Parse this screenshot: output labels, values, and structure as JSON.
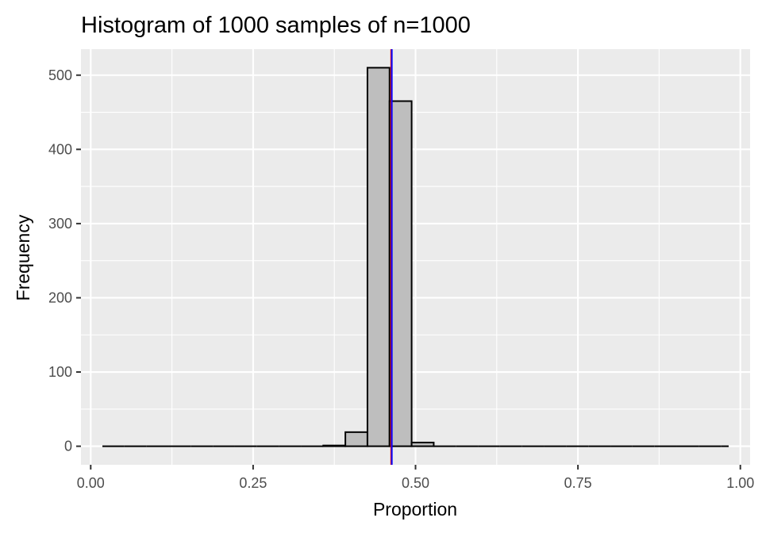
{
  "chart_data": {
    "type": "bar",
    "title": "Histogram of 1000 samples of n=1000",
    "xlabel": "Proportion",
    "ylabel": "Frequency",
    "xlim": [
      -0.015,
      1.015
    ],
    "ylim": [
      -25,
      535
    ],
    "x_ticks": [
      0.0,
      0.25,
      0.5,
      0.75,
      1.0
    ],
    "x_tick_labels": [
      "0.00",
      "0.25",
      "0.50",
      "0.75",
      "1.00"
    ],
    "y_ticks": [
      0,
      100,
      200,
      300,
      400,
      500
    ],
    "y_tick_labels": [
      "0",
      "100",
      "200",
      "300",
      "400",
      "500"
    ],
    "grid": true,
    "bin_width": 0.034,
    "bins": [
      {
        "x0": 0.018,
        "x1": 0.052,
        "count": 0
      },
      {
        "x0": 0.052,
        "x1": 0.086,
        "count": 0
      },
      {
        "x0": 0.086,
        "x1": 0.12,
        "count": 0
      },
      {
        "x0": 0.12,
        "x1": 0.154,
        "count": 0
      },
      {
        "x0": 0.154,
        "x1": 0.188,
        "count": 0
      },
      {
        "x0": 0.188,
        "x1": 0.222,
        "count": 0
      },
      {
        "x0": 0.222,
        "x1": 0.256,
        "count": 0
      },
      {
        "x0": 0.256,
        "x1": 0.29,
        "count": 0
      },
      {
        "x0": 0.29,
        "x1": 0.324,
        "count": 0
      },
      {
        "x0": 0.324,
        "x1": 0.358,
        "count": 0
      },
      {
        "x0": 0.358,
        "x1": 0.392,
        "count": 1
      },
      {
        "x0": 0.392,
        "x1": 0.426,
        "count": 19
      },
      {
        "x0": 0.426,
        "x1": 0.46,
        "count": 510
      },
      {
        "x0": 0.46,
        "x1": 0.494,
        "count": 465
      },
      {
        "x0": 0.494,
        "x1": 0.528,
        "count": 5
      },
      {
        "x0": 0.528,
        "x1": 0.562,
        "count": 0
      },
      {
        "x0": 0.562,
        "x1": 0.596,
        "count": 0
      },
      {
        "x0": 0.596,
        "x1": 0.63,
        "count": 0
      },
      {
        "x0": 0.63,
        "x1": 0.664,
        "count": 0
      },
      {
        "x0": 0.664,
        "x1": 0.698,
        "count": 0
      },
      {
        "x0": 0.698,
        "x1": 0.732,
        "count": 0
      },
      {
        "x0": 0.732,
        "x1": 0.766,
        "count": 0
      },
      {
        "x0": 0.766,
        "x1": 0.8,
        "count": 0
      },
      {
        "x0": 0.8,
        "x1": 0.834,
        "count": 0
      },
      {
        "x0": 0.834,
        "x1": 0.868,
        "count": 0
      },
      {
        "x0": 0.868,
        "x1": 0.902,
        "count": 0
      },
      {
        "x0": 0.902,
        "x1": 0.936,
        "count": 0
      },
      {
        "x0": 0.936,
        "x1": 0.97,
        "count": 0
      },
      {
        "x0": 0.97,
        "x1": 0.982,
        "count": 0
      }
    ],
    "vlines": [
      {
        "x": 0.4625,
        "color": "#ff0000"
      },
      {
        "x": 0.4635,
        "color": "#0000ff"
      }
    ],
    "colors": {
      "bar_fill": "#bebebe",
      "bar_stroke": "#000000",
      "panel_bg": "#ebebeb",
      "grid": "#ffffff"
    }
  }
}
